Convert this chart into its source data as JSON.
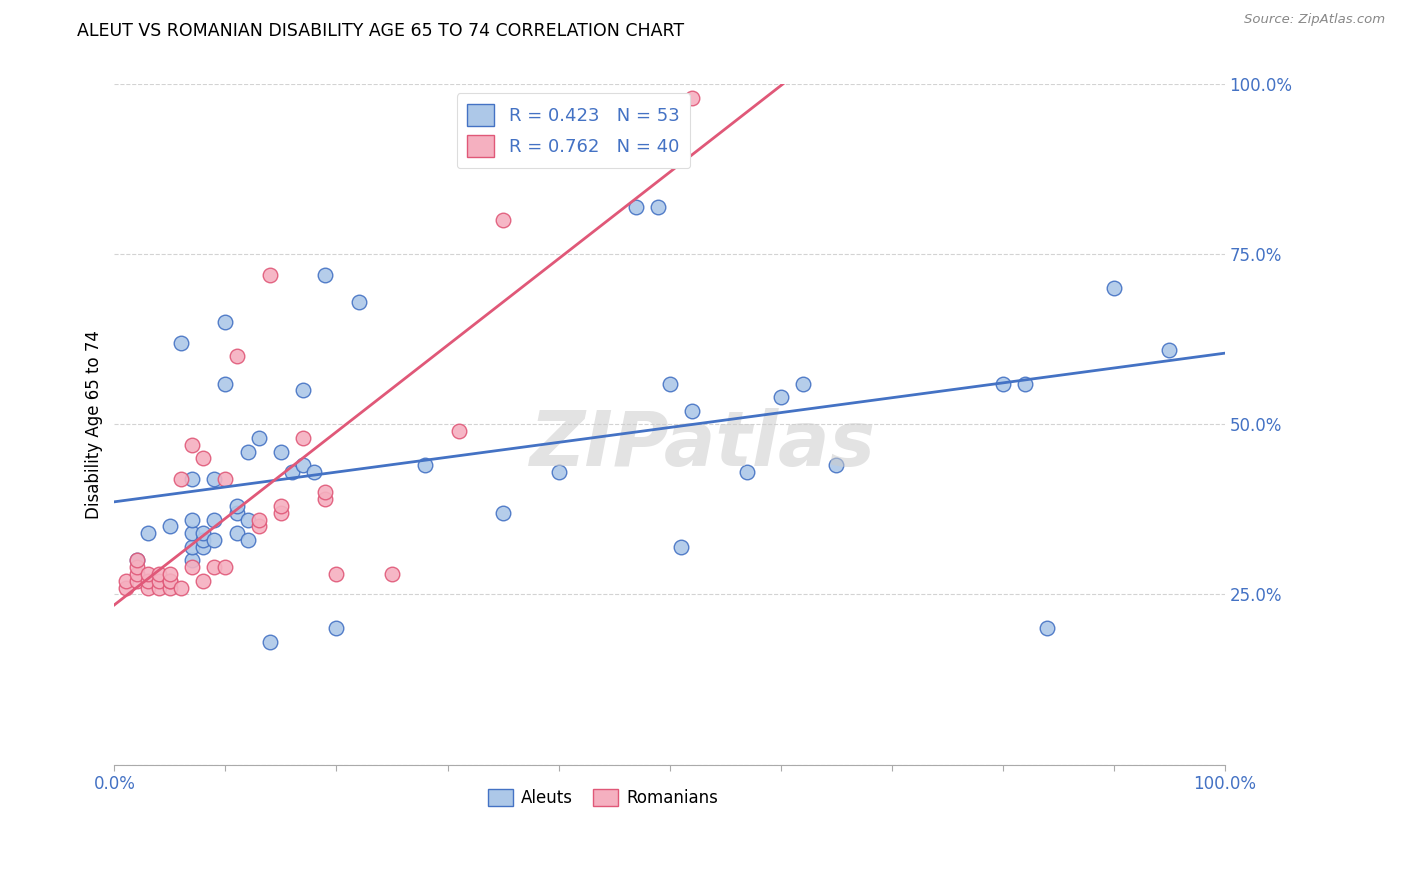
{
  "title": "ALEUT VS ROMANIAN DISABILITY AGE 65 TO 74 CORRELATION CHART",
  "source": "Source: ZipAtlas.com",
  "ylabel": "Disability Age 65 to 74",
  "xlim": [
    0,
    1.0
  ],
  "ylim": [
    0,
    1.0
  ],
  "aleuts_R": 0.423,
  "aleuts_N": 53,
  "romanians_R": 0.762,
  "romanians_N": 40,
  "aleut_color": "#adc8e8",
  "romanian_color": "#f5b0c0",
  "aleut_line_color": "#4472C4",
  "romanian_line_color": "#E05878",
  "tick_label_color": "#4472C4",
  "watermark": "ZIPatlas",
  "aleuts_x": [
    0.02,
    0.03,
    0.05,
    0.06,
    0.07,
    0.07,
    0.07,
    0.07,
    0.07,
    0.08,
    0.08,
    0.08,
    0.09,
    0.09,
    0.09,
    0.1,
    0.1,
    0.11,
    0.11,
    0.11,
    0.12,
    0.12,
    0.12,
    0.13,
    0.14,
    0.15,
    0.16,
    0.17,
    0.17,
    0.18,
    0.19,
    0.2,
    0.22,
    0.28,
    0.35,
    0.4,
    0.47,
    0.49,
    0.5,
    0.51,
    0.52,
    0.57,
    0.6,
    0.62,
    0.65,
    0.8,
    0.82,
    0.84,
    0.9,
    0.95
  ],
  "aleuts_y": [
    0.3,
    0.34,
    0.35,
    0.62,
    0.3,
    0.32,
    0.34,
    0.36,
    0.42,
    0.32,
    0.33,
    0.34,
    0.33,
    0.36,
    0.42,
    0.56,
    0.65,
    0.34,
    0.37,
    0.38,
    0.33,
    0.36,
    0.46,
    0.48,
    0.18,
    0.46,
    0.43,
    0.44,
    0.55,
    0.43,
    0.72,
    0.2,
    0.68,
    0.44,
    0.37,
    0.43,
    0.82,
    0.82,
    0.56,
    0.32,
    0.52,
    0.43,
    0.54,
    0.56,
    0.44,
    0.56,
    0.56,
    0.2,
    0.7,
    0.61
  ],
  "romanians_x": [
    0.01,
    0.01,
    0.02,
    0.02,
    0.02,
    0.02,
    0.03,
    0.03,
    0.03,
    0.04,
    0.04,
    0.04,
    0.05,
    0.05,
    0.05,
    0.05,
    0.06,
    0.06,
    0.07,
    0.07,
    0.08,
    0.08,
    0.09,
    0.1,
    0.1,
    0.11,
    0.13,
    0.13,
    0.14,
    0.15,
    0.15,
    0.17,
    0.19,
    0.19,
    0.2,
    0.25,
    0.31,
    0.35,
    0.49,
    0.52
  ],
  "romanians_y": [
    0.26,
    0.27,
    0.27,
    0.28,
    0.29,
    0.3,
    0.26,
    0.27,
    0.28,
    0.26,
    0.27,
    0.28,
    0.26,
    0.27,
    0.27,
    0.28,
    0.26,
    0.42,
    0.29,
    0.47,
    0.27,
    0.45,
    0.29,
    0.29,
    0.42,
    0.6,
    0.35,
    0.36,
    0.72,
    0.37,
    0.38,
    0.48,
    0.39,
    0.4,
    0.28,
    0.28,
    0.49,
    0.8,
    0.96,
    0.98
  ],
  "background_color": "#ffffff",
  "grid_color": "#c8c8c8",
  "xticks": [
    0.0,
    0.1,
    0.2,
    0.3,
    0.4,
    0.5,
    0.6,
    0.7,
    0.8,
    0.9,
    1.0
  ],
  "yticks": [
    0.0,
    0.25,
    0.5,
    0.75,
    1.0
  ]
}
